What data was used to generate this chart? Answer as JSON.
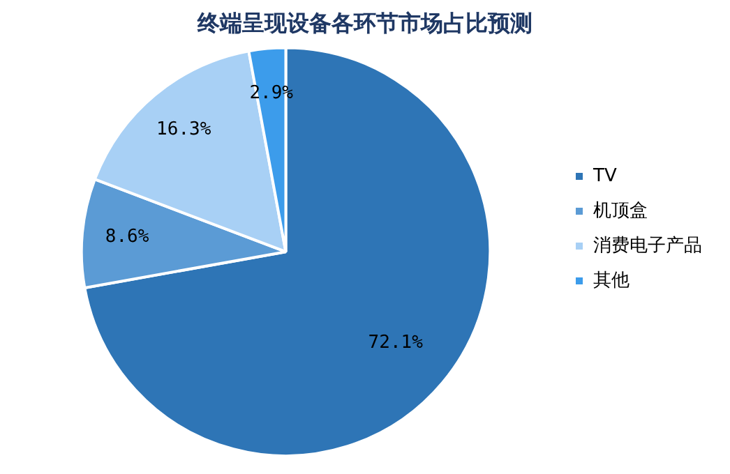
{
  "chart_data": {
    "type": "pie",
    "title": "终端呈现设备各环节市场占比预测",
    "categories": [
      "TV",
      "机顶盒",
      "消费电子产品",
      "其他"
    ],
    "values": [
      72.1,
      8.6,
      16.3,
      2.9
    ],
    "colors": [
      "#2e75b6",
      "#5b9bd5",
      "#a8d0f5",
      "#3c9ceb"
    ],
    "value_labels": [
      "72.1%",
      "8.6%",
      "16.3%",
      "2.9%"
    ],
    "legend": "right"
  }
}
